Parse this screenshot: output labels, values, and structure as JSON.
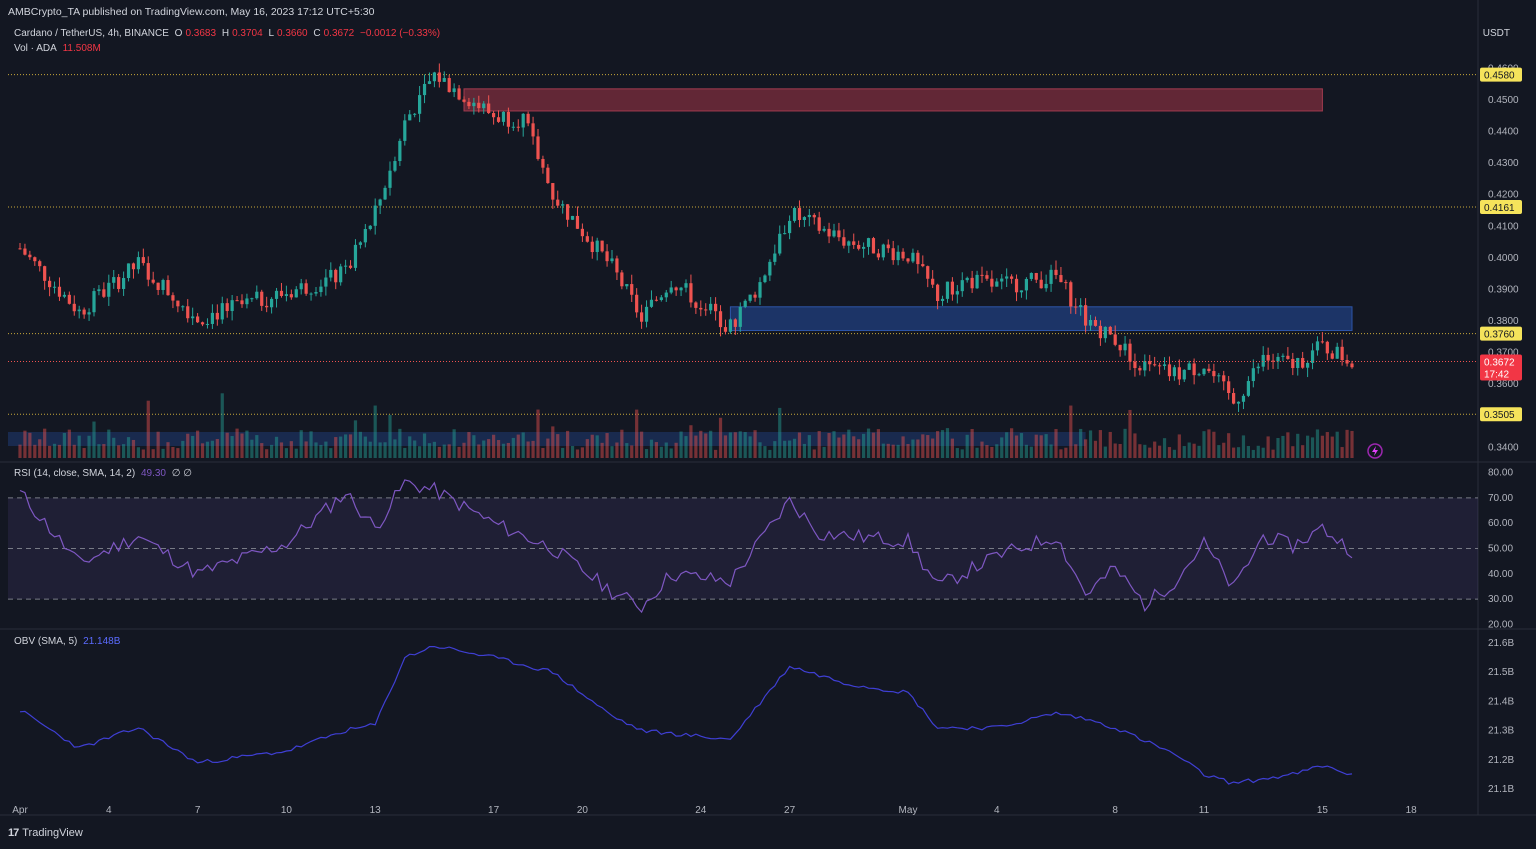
{
  "publisher_line": "AMBCrypto_TA published on TradingView.com, May 16, 2023 17:12 UTC+5:30",
  "symbol": {
    "name": "Cardano / TetherUS, 4h, BINANCE",
    "o_label": "O",
    "o": "0.3683",
    "h_label": "H",
    "h": "0.3704",
    "l_label": "L",
    "l": "0.3660",
    "c_label": "C",
    "c": "0.3672",
    "change": "−0.0012 (−0.33%)"
  },
  "volume": {
    "label": "Vol · ADA",
    "value": "11.508M"
  },
  "rsi_header": {
    "label": "RSI (14, close, SMA, 14, 2)",
    "value": "49.30",
    "extra": "∅  ∅"
  },
  "obv_header": {
    "label": "OBV (SMA, 5)",
    "value": "21.148B"
  },
  "currency": "USDT",
  "brand": {
    "name": "TradingView",
    "icon": "tradingview-logo-icon"
  },
  "colors": {
    "background": "#131722",
    "bull": "#26a69a",
    "bear": "#ef5350",
    "level_line": "#c8a83a",
    "resistance_zone": "#7d2e3d",
    "support_zone": "#1f3a73",
    "rsi_line": "#7e57c2",
    "obv_line": "#3f3fd4"
  },
  "chart_data": [
    {
      "type": "candlestick",
      "panel": "price",
      "y_axis_ticks": [
        "0.4600",
        "0.4500",
        "0.4400",
        "0.4300",
        "0.4200",
        "0.4100",
        "0.4000",
        "0.3900",
        "0.3800",
        "0.3700",
        "0.3600",
        "0.3400"
      ],
      "ylim": [
        0.336,
        0.462
      ],
      "x_axis_ticks": [
        "Apr",
        "4",
        "7",
        "10",
        "13",
        "17",
        "20",
        "24",
        "27",
        "May",
        "4",
        "8",
        "11",
        "15",
        "18"
      ],
      "horizontal_levels": [
        {
          "value": 0.458,
          "label": "0.4580"
        },
        {
          "value": 0.4161,
          "label": "0.4161"
        },
        {
          "value": 0.376,
          "label": "0.3760"
        },
        {
          "value": 0.3505,
          "label": "0.3505"
        }
      ],
      "current_price": {
        "value": 0.3672,
        "label": "0.3672",
        "countdown": "17:42"
      },
      "zones": [
        {
          "kind": "resistance",
          "low": 0.4465,
          "high": 0.4535,
          "from_date": "Apr 16",
          "to_date": "May 15"
        },
        {
          "kind": "support",
          "low": 0.377,
          "high": 0.3845,
          "from_date": "Apr 25",
          "to_date": "May 16"
        }
      ],
      "key_prices": [
        {
          "date": "Apr 1",
          "close": 0.403
        },
        {
          "date": "Apr 3",
          "close": 0.383
        },
        {
          "date": "Apr 5",
          "close": 0.398
        },
        {
          "date": "Apr 7",
          "close": 0.381
        },
        {
          "date": "Apr 10",
          "close": 0.389
        },
        {
          "date": "Apr 12",
          "close": 0.395
        },
        {
          "date": "Apr 13",
          "close": 0.414
        },
        {
          "date": "Apr 14",
          "close": 0.443
        },
        {
          "date": "Apr 15",
          "close": 0.458
        },
        {
          "date": "Apr 17",
          "close": 0.445
        },
        {
          "date": "Apr 18",
          "close": 0.444
        },
        {
          "date": "Apr 19",
          "close": 0.42
        },
        {
          "date": "Apr 21",
          "close": 0.397
        },
        {
          "date": "Apr 22",
          "close": 0.381
        },
        {
          "date": "Apr 23",
          "close": 0.393
        },
        {
          "date": "Apr 25",
          "close": 0.378
        },
        {
          "date": "Apr 26",
          "close": 0.392
        },
        {
          "date": "Apr 27",
          "close": 0.414
        },
        {
          "date": "Apr 29",
          "close": 0.405
        },
        {
          "date": "May 1",
          "close": 0.401
        },
        {
          "date": "May 2",
          "close": 0.388
        },
        {
          "date": "May 3",
          "close": 0.393
        },
        {
          "date": "May 4",
          "close": 0.391
        },
        {
          "date": "May 6",
          "close": 0.394
        },
        {
          "date": "May 7",
          "close": 0.381
        },
        {
          "date": "May 8",
          "close": 0.374
        },
        {
          "date": "May 9",
          "close": 0.365
        },
        {
          "date": "May 10",
          "close": 0.363
        },
        {
          "date": "May 11",
          "close": 0.366
        },
        {
          "date": "May 12",
          "close": 0.354
        },
        {
          "date": "May 13",
          "close": 0.368
        },
        {
          "date": "May 14",
          "close": 0.366
        },
        {
          "date": "May 15",
          "close": 0.372
        },
        {
          "date": "May 16",
          "close": 0.3672
        }
      ]
    },
    {
      "type": "line",
      "panel": "rsi",
      "y_axis_ticks": [
        "80.00",
        "70.00",
        "60.00",
        "50.00",
        "40.00",
        "30.00",
        "20.00"
      ],
      "ylim": [
        19,
        81
      ],
      "band": [
        30,
        70
      ],
      "midline": 50,
      "key_values": [
        {
          "date": "Apr 1",
          "value": 72
        },
        {
          "date": "Apr 3",
          "value": 44
        },
        {
          "date": "Apr 5",
          "value": 55
        },
        {
          "date": "Apr 7",
          "value": 40
        },
        {
          "date": "Apr 10",
          "value": 52
        },
        {
          "date": "Apr 12",
          "value": 72
        },
        {
          "date": "Apr 13",
          "value": 58
        },
        {
          "date": "Apr 14",
          "value": 76
        },
        {
          "date": "Apr 15",
          "value": 73
        },
        {
          "date": "Apr 17",
          "value": 60
        },
        {
          "date": "Apr 19",
          "value": 50
        },
        {
          "date": "Apr 21",
          "value": 33
        },
        {
          "date": "Apr 22",
          "value": 27
        },
        {
          "date": "Apr 23",
          "value": 40
        },
        {
          "date": "Apr 25",
          "value": 37
        },
        {
          "date": "Apr 27",
          "value": 69
        },
        {
          "date": "Apr 28",
          "value": 56
        },
        {
          "date": "May 1",
          "value": 53
        },
        {
          "date": "May 2",
          "value": 35
        },
        {
          "date": "May 4",
          "value": 47
        },
        {
          "date": "May 6",
          "value": 55
        },
        {
          "date": "May 7",
          "value": 32
        },
        {
          "date": "May 8",
          "value": 42
        },
        {
          "date": "May 9",
          "value": 28
        },
        {
          "date": "May 10",
          "value": 37
        },
        {
          "date": "May 11",
          "value": 52
        },
        {
          "date": "May 12",
          "value": 34
        },
        {
          "date": "May 13",
          "value": 55
        },
        {
          "date": "May 14",
          "value": 51
        },
        {
          "date": "May 15",
          "value": 58
        },
        {
          "date": "May 16",
          "value": 49.3
        }
      ]
    },
    {
      "type": "line",
      "panel": "obv",
      "y_axis_ticks": [
        "21.6B",
        "21.5B",
        "21.4B",
        "21.3B",
        "21.2B",
        "21.1B"
      ],
      "ylim": [
        21.08,
        21.62
      ],
      "key_values": [
        {
          "date": "Apr 1",
          "value": 21.37
        },
        {
          "date": "Apr 3",
          "value": 21.24
        },
        {
          "date": "Apr 5",
          "value": 21.31
        },
        {
          "date": "Apr 7",
          "value": 21.19
        },
        {
          "date": "Apr 10",
          "value": 21.23
        },
        {
          "date": "Apr 12",
          "value": 21.3
        },
        {
          "date": "Apr 13",
          "value": 21.32
        },
        {
          "date": "Apr 14",
          "value": 21.55
        },
        {
          "date": "Apr 15",
          "value": 21.59
        },
        {
          "date": "Apr 17",
          "value": 21.55
        },
        {
          "date": "Apr 19",
          "value": 21.5
        },
        {
          "date": "Apr 21",
          "value": 21.35
        },
        {
          "date": "Apr 22",
          "value": 21.3
        },
        {
          "date": "Apr 25",
          "value": 21.27
        },
        {
          "date": "Apr 27",
          "value": 21.52
        },
        {
          "date": "Apr 29",
          "value": 21.46
        },
        {
          "date": "May 1",
          "value": 21.43
        },
        {
          "date": "May 2",
          "value": 21.31
        },
        {
          "date": "May 4",
          "value": 21.31
        },
        {
          "date": "May 6",
          "value": 21.36
        },
        {
          "date": "May 7",
          "value": 21.34
        },
        {
          "date": "May 8",
          "value": 21.31
        },
        {
          "date": "May 10",
          "value": 21.22
        },
        {
          "date": "May 11",
          "value": 21.15
        },
        {
          "date": "May 12",
          "value": 21.12
        },
        {
          "date": "May 14",
          "value": 21.15
        },
        {
          "date": "May 15",
          "value": 21.18
        },
        {
          "date": "May 16",
          "value": 21.15
        }
      ]
    }
  ]
}
